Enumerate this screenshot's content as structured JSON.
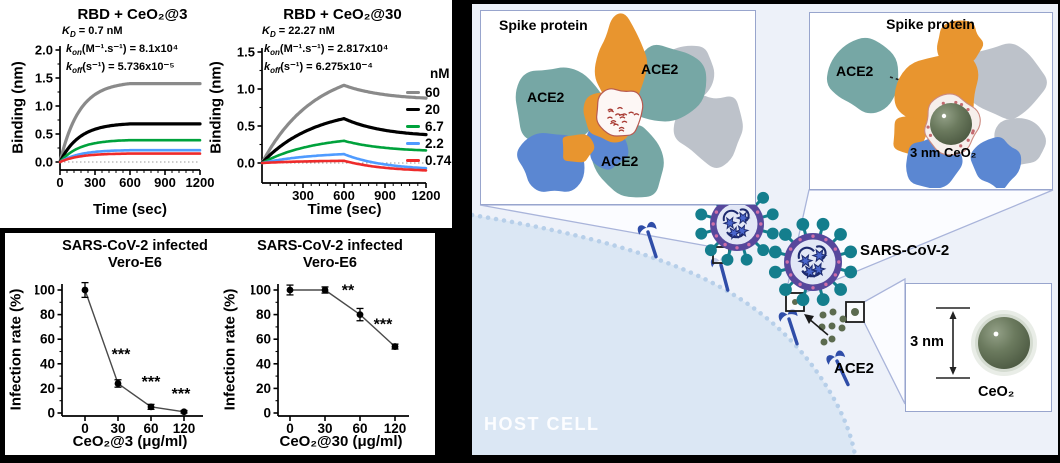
{
  "colors": {
    "series_gray": "#8a8a8a",
    "series_black": "#000000",
    "series_green": "#00a23c",
    "series_blue": "#4f9bff",
    "series_red": "#ee2b2b",
    "teal_ace2": "#76a7a5",
    "orange_spike": "#e8952f",
    "gray_spike": "#bdc2ca",
    "blue_spike": "#5b87d2",
    "ceo2_green": "#6b7a5e",
    "virus_ring": "#57489c",
    "virus_spike": "#147e8d",
    "host_cell": "#dbe7f4",
    "callout": "#a9b4da"
  },
  "chart_data": [
    {
      "type": "line",
      "id": "binding-ceo2-3",
      "title": "RBD + CeO₂@3",
      "kd": {
        "pre": "K",
        "sub": "D",
        "rest": " = 0.7 nM"
      },
      "kon": {
        "pre": "k",
        "sub": "on",
        "rest": "(M⁻¹.s⁻¹) = 8.1x10⁴"
      },
      "koff": {
        "pre": "k",
        "sub": "off",
        "rest": "(s⁻¹) = 5.736x10⁻⁵"
      },
      "xlabel": "Time (sec)",
      "ylabel": "Binding (nm)",
      "xlim": [
        0,
        1200
      ],
      "ylim": [
        0,
        2.0
      ],
      "association_end_sec": 600,
      "xticks": [
        {
          "v": 0,
          "label": "0"
        },
        {
          "v": 300,
          "label": "300"
        },
        {
          "v": 600,
          "label": "600"
        },
        {
          "v": 900,
          "label": "900"
        },
        {
          "v": 1200,
          "label": "1200"
        }
      ],
      "yticks": [
        {
          "v": 0,
          "label": "0.0"
        },
        {
          "v": 0.5,
          "label": "0.5"
        },
        {
          "v": 1,
          "label": "1.0"
        },
        {
          "v": 1.5,
          "label": "1.5"
        },
        {
          "v": 2,
          "label": "2.0"
        }
      ],
      "series": [
        {
          "name": "60",
          "color": "#8a8a8a",
          "plateau": 1.4
        },
        {
          "name": "20",
          "color": "#000000",
          "plateau": 0.68
        },
        {
          "name": "6.7",
          "color": "#00a23c",
          "plateau": 0.39
        },
        {
          "name": "2.2",
          "color": "#4f9bff",
          "plateau": 0.21
        },
        {
          "name": "0.74",
          "color": "#ee2b2b",
          "plateau": 0.15
        }
      ]
    },
    {
      "type": "line",
      "id": "binding-ceo2-30",
      "title": "RBD + CeO₂@30",
      "kd": {
        "pre": "K",
        "sub": "D",
        "rest": " = 22.27 nM"
      },
      "kon": {
        "pre": "k",
        "sub": "on",
        "rest": "(M⁻¹.s⁻¹) = 2.817x10⁴"
      },
      "koff": {
        "pre": "k",
        "sub": "off",
        "rest": "(s⁻¹) = 6.275x10⁻⁴"
      },
      "xlabel": "Time (sec)",
      "ylabel": "Binding (nm)",
      "xlim": [
        0,
        1200
      ],
      "ylim": [
        -0.27,
        1.5
      ],
      "association_end_sec": 600,
      "xticks": [
        {
          "v": 300,
          "label": "300"
        },
        {
          "v": 600,
          "label": "600"
        },
        {
          "v": 900,
          "label": "900"
        },
        {
          "v": 1200,
          "label": "1200"
        }
      ],
      "yticks": [
        {
          "v": 0,
          "label": "0.0"
        },
        {
          "v": 0.5,
          "label": "0.5"
        },
        {
          "v": 1,
          "label": "1.0"
        },
        {
          "v": 1.5,
          "label": "1.5"
        }
      ],
      "legend": {
        "title": "nM",
        "entries": [
          {
            "label": "60",
            "color": "#8a8a8a"
          },
          {
            "label": "20",
            "color": "#000000"
          },
          {
            "label": "6.7",
            "color": "#00a23c"
          },
          {
            "label": "2.2",
            "color": "#4f9bff"
          },
          {
            "label": "0.74",
            "color": "#ee2b2b"
          }
        ]
      },
      "series": [
        {
          "name": "60",
          "color": "#8a8a8a",
          "peak": 1.05,
          "end": 0.85
        },
        {
          "name": "20",
          "color": "#000000",
          "peak": 0.6,
          "end": 0.35
        },
        {
          "name": "6.7",
          "color": "#00a23c",
          "peak": 0.3,
          "end": 0.15
        },
        {
          "name": "2.2",
          "color": "#4f9bff",
          "peak": 0.12,
          "end": -0.1
        },
        {
          "name": "0.74",
          "color": "#ee2b2b",
          "peak": 0.03,
          "end": -0.12
        }
      ]
    },
    {
      "type": "scatter-line",
      "id": "infection-ceo2-3",
      "title": "SARS-CoV-2 infected\nVero-E6",
      "xlabel": "CeO₂@3 (μg/ml)",
      "ylabel": "Infection rate (%)",
      "categories": [
        "0",
        "30",
        "60",
        "120"
      ],
      "values": [
        100,
        24,
        5,
        1
      ],
      "errors": [
        6,
        3,
        2,
        1
      ],
      "ylim": [
        0,
        100
      ],
      "yticks": [
        {
          "v": 0,
          "label": "0"
        },
        {
          "v": 20,
          "label": "20"
        },
        {
          "v": 40,
          "label": "40"
        },
        {
          "v": 60,
          "label": "60"
        },
        {
          "v": 80,
          "label": "80"
        },
        {
          "v": 100,
          "label": "100"
        }
      ],
      "significance": [
        {
          "text": "***",
          "at": "30"
        },
        {
          "text": "***",
          "at": "60"
        },
        {
          "text": "***",
          "at": "120"
        }
      ]
    },
    {
      "type": "scatter-line",
      "id": "infection-ceo2-30",
      "title": "SARS-CoV-2 infected\nVero-E6",
      "xlabel": "CeO₂@30 (μg/ml)",
      "ylabel": "Infection rate (%)",
      "categories": [
        "0",
        "30",
        "60",
        "120"
      ],
      "values": [
        100,
        100,
        80,
        54
      ],
      "errors": [
        4,
        2.5,
        5,
        2
      ],
      "ylim": [
        0,
        100
      ],
      "yticks": [
        {
          "v": 0,
          "label": "0"
        },
        {
          "v": 20,
          "label": "20"
        },
        {
          "v": 40,
          "label": "40"
        },
        {
          "v": 60,
          "label": "60"
        },
        {
          "v": 80,
          "label": "80"
        },
        {
          "v": 100,
          "label": "100"
        }
      ],
      "significance": [
        {
          "text": "**",
          "at": "60"
        },
        {
          "text": "***",
          "at": "120"
        }
      ]
    }
  ],
  "illustration": {
    "inset_multi_ace2": {
      "title": "Spike protein",
      "labels": [
        "ACE2",
        "ACE2",
        "ACE2"
      ]
    },
    "inset_blocked": {
      "title": "Spike protein",
      "ace2": "ACE2",
      "ceo2": "3 nm CeO₂"
    },
    "inset_particle": {
      "size": "3 nm",
      "name": "CeO₂"
    },
    "scene": {
      "virus": "SARS-CoV-2",
      "receptor": "ACE2",
      "cell": "HOST CELL"
    }
  }
}
